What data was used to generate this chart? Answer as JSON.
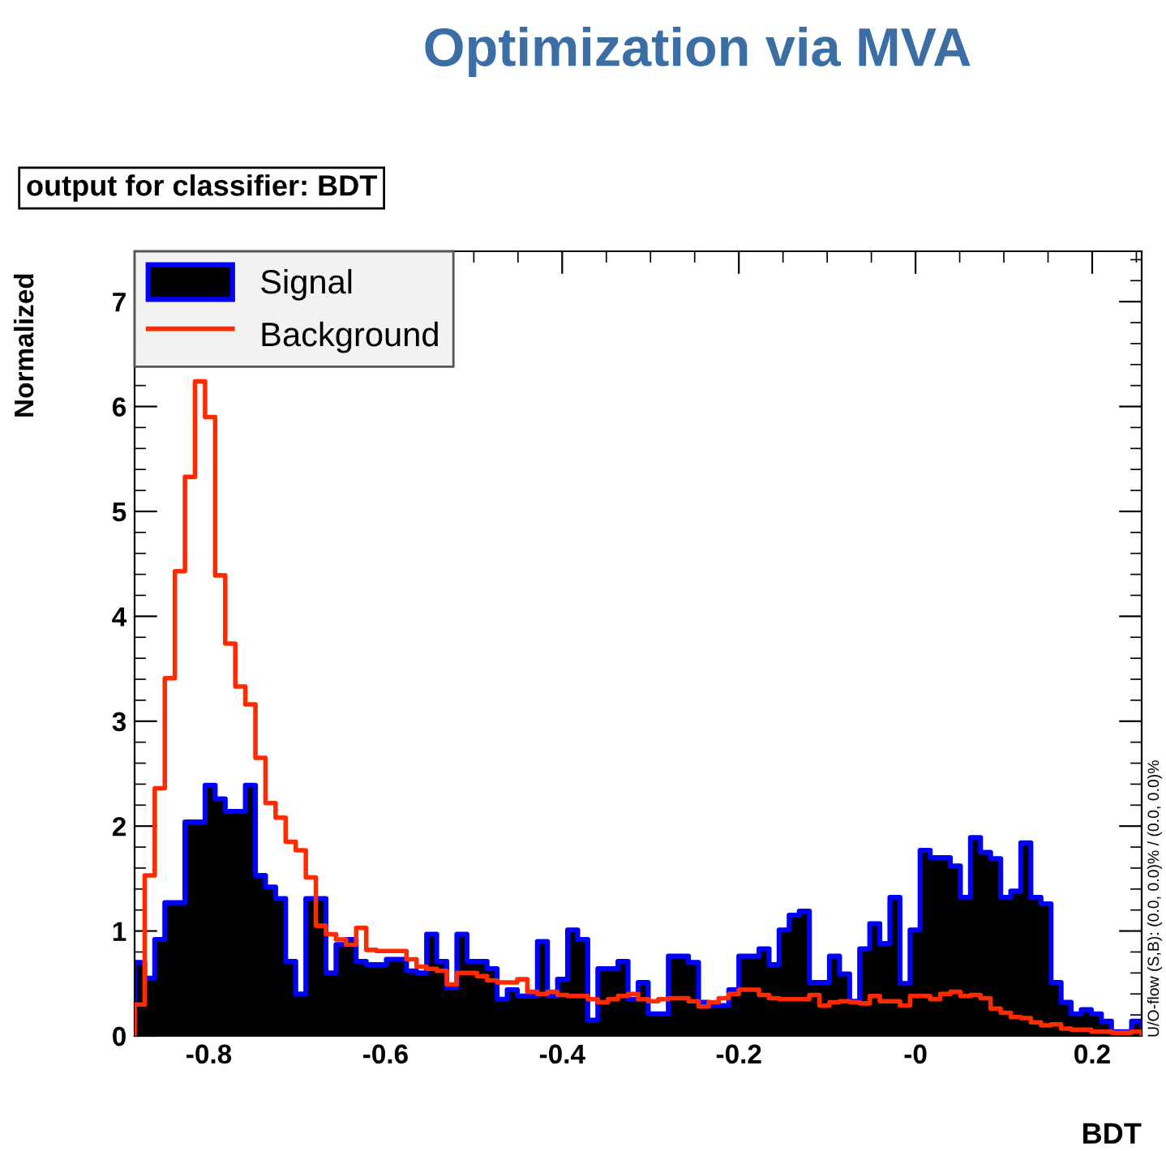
{
  "chart_data": {
    "type": "histogram",
    "title": "Optimization via MVA",
    "subtitle": "output for classifier: BDT",
    "xlabel": "BDT",
    "ylabel": "Normalized",
    "annotations": [
      "U/O-flow (S,B): (0.0, 0.0)% / (0.0, 0.0)%"
    ],
    "bins": [
      -0.884,
      -0.8726,
      -0.8612,
      -0.8498,
      -0.8384,
      -0.827,
      -0.8156,
      -0.8042,
      -0.7928,
      -0.7814,
      -0.77,
      -0.7586,
      -0.7472,
      -0.7358,
      -0.7244,
      -0.713,
      -0.7016,
      -0.6902,
      -0.6788,
      -0.6674,
      -0.656,
      -0.6446,
      -0.6332,
      -0.6218,
      -0.6104,
      -0.599,
      -0.5876,
      -0.5762,
      -0.5648,
      -0.5534,
      -0.542,
      -0.5306,
      -0.5192,
      -0.5078,
      -0.4964,
      -0.485,
      -0.4736,
      -0.4622,
      -0.4508,
      -0.4394,
      -0.428,
      -0.4166,
      -0.4052,
      -0.3938,
      -0.3824,
      -0.371,
      -0.3596,
      -0.3482,
      -0.3368,
      -0.3254,
      -0.314,
      -0.3026,
      -0.2912,
      -0.2798,
      -0.2684,
      -0.257,
      -0.2456,
      -0.2342,
      -0.2228,
      -0.2114,
      -0.2,
      -0.1886,
      -0.1772,
      -0.1658,
      -0.1544,
      -0.143,
      -0.1316,
      -0.1202,
      -0.1088,
      -0.0974,
      -0.086,
      -0.0746,
      -0.0632,
      -0.0518,
      -0.0404,
      -0.029,
      -0.0176,
      -0.0062,
      0.0052,
      0.0166,
      0.028,
      0.0394,
      0.0508,
      0.0622,
      0.0736,
      0.085,
      0.0964,
      0.1078,
      0.1192,
      0.1306,
      0.142,
      0.1534,
      0.1648,
      0.1762,
      0.1876,
      0.199,
      0.2104,
      0.2218,
      0.2332,
      0.2446,
      0.256
    ],
    "series": [
      {
        "name": "Signal",
        "color": "#0000ff",
        "values": [
          0.7,
          0.55,
          0.92,
          1.27,
          1.27,
          2.04,
          2.04,
          2.39,
          2.26,
          2.14,
          2.14,
          2.39,
          1.53,
          1.42,
          1.31,
          0.71,
          0.4,
          1.31,
          1.31,
          0.6,
          0.87,
          0.92,
          0.71,
          0.68,
          0.68,
          0.73,
          0.73,
          0.62,
          0.6,
          0.97,
          0.71,
          0.46,
          0.97,
          0.71,
          0.71,
          0.64,
          0.35,
          0.44,
          0.38,
          0.38,
          0.9,
          0.38,
          0.54,
          1.01,
          0.92,
          0.15,
          0.64,
          0.64,
          0.71,
          0.35,
          0.51,
          0.21,
          0.21,
          0.76,
          0.76,
          0.7,
          0.32,
          0.29,
          0.29,
          0.44,
          0.76,
          0.76,
          0.83,
          0.68,
          1.01,
          1.15,
          1.19,
          0.51,
          0.51,
          0.76,
          0.59,
          0.33,
          0.83,
          1.07,
          0.88,
          1.32,
          0.5,
          1.01,
          1.77,
          1.7,
          1.7,
          1.62,
          1.32,
          1.89,
          1.75,
          1.69,
          1.32,
          1.38,
          1.84,
          1.32,
          1.26,
          0.51,
          0.32,
          0.21,
          0.25,
          0.21,
          0.14,
          0.04,
          0.04,
          0.14
        ]
      },
      {
        "name": "Background",
        "color": "#ff2a00",
        "values": [
          0.3,
          1.53,
          2.36,
          3.41,
          4.43,
          5.33,
          6.24,
          5.9,
          4.39,
          3.74,
          3.33,
          3.16,
          2.65,
          2.22,
          2.08,
          1.85,
          1.77,
          1.51,
          1.05,
          0.97,
          0.92,
          0.87,
          1.03,
          0.82,
          0.81,
          0.81,
          0.81,
          0.73,
          0.66,
          0.64,
          0.62,
          0.49,
          0.6,
          0.6,
          0.57,
          0.53,
          0.51,
          0.51,
          0.54,
          0.42,
          0.4,
          0.42,
          0.39,
          0.38,
          0.38,
          0.35,
          0.32,
          0.35,
          0.38,
          0.4,
          0.35,
          0.33,
          0.35,
          0.36,
          0.36,
          0.33,
          0.28,
          0.32,
          0.36,
          0.4,
          0.44,
          0.44,
          0.39,
          0.36,
          0.35,
          0.35,
          0.35,
          0.39,
          0.29,
          0.32,
          0.33,
          0.32,
          0.31,
          0.38,
          0.33,
          0.33,
          0.29,
          0.38,
          0.38,
          0.35,
          0.4,
          0.42,
          0.38,
          0.39,
          0.36,
          0.26,
          0.22,
          0.18,
          0.17,
          0.13,
          0.1,
          0.11,
          0.07,
          0.06,
          0.06,
          0.04,
          0.04,
          0.03,
          0.03,
          0.04
        ]
      }
    ],
    "xlim": [
      -0.884,
      0.256
    ],
    "ylim": [
      0,
      7.48
    ],
    "xticks": [
      -0.8,
      -0.6,
      -0.4,
      -0.2,
      {
        "value": 0,
        "label": "-0"
      },
      0.2
    ],
    "yticks": [
      0,
      1,
      2,
      3,
      4,
      5,
      6,
      7
    ],
    "legend": "top left"
  }
}
